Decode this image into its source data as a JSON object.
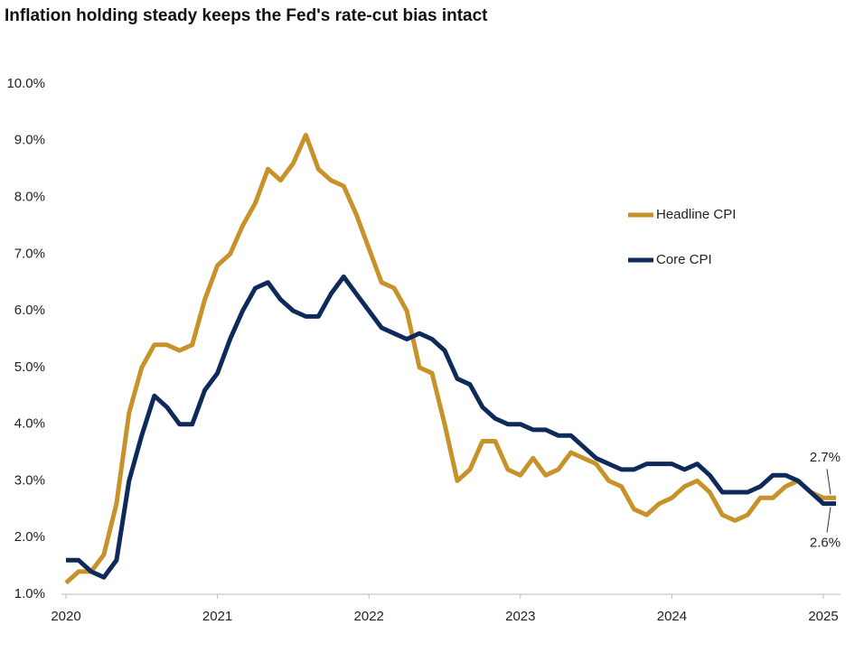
{
  "chart_data": {
    "type": "line",
    "title": "Inflation holding steady keeps the Fed's rate-cut bias intact",
    "categories": [
      "2020",
      null,
      null,
      null,
      null,
      null,
      null,
      null,
      null,
      null,
      null,
      null,
      "2021",
      null,
      null,
      null,
      null,
      null,
      null,
      null,
      null,
      null,
      null,
      null,
      "2022",
      null,
      null,
      null,
      null,
      null,
      null,
      null,
      null,
      null,
      null,
      null,
      "2023",
      null,
      null,
      null,
      null,
      null,
      null,
      null,
      null,
      null,
      null,
      null,
      "2024",
      null,
      null,
      null,
      null,
      null,
      null,
      null,
      null,
      null,
      null,
      null,
      "2025",
      null
    ],
    "series": [
      {
        "name": "Headline CPI",
        "color": "#c8922a",
        "values": [
          1.2,
          1.4,
          1.4,
          1.7,
          2.6,
          4.2,
          5.0,
          5.4,
          5.4,
          5.3,
          5.4,
          6.2,
          6.8,
          7.0,
          7.5,
          7.9,
          8.5,
          8.3,
          8.6,
          9.1,
          8.5,
          8.3,
          8.2,
          7.7,
          7.1,
          6.5,
          6.4,
          6.0,
          5.0,
          4.9,
          4.0,
          3.0,
          3.2,
          3.7,
          3.7,
          3.2,
          3.1,
          3.4,
          3.1,
          3.2,
          3.5,
          3.4,
          3.3,
          3.0,
          2.9,
          2.5,
          2.4,
          2.6,
          2.7,
          2.9,
          3.0,
          2.8,
          2.4,
          2.3,
          2.4,
          2.7,
          2.7,
          2.9,
          3.0,
          2.8,
          2.7,
          2.7
        ],
        "value_labels": [
          null,
          null,
          null,
          null,
          null,
          null,
          null,
          null,
          null,
          null,
          null,
          null,
          null,
          null,
          null,
          null,
          null,
          null,
          null,
          null,
          null,
          null,
          null,
          null,
          null,
          null,
          null,
          null,
          null,
          null,
          null,
          null,
          null,
          null,
          null,
          null,
          null,
          null,
          null,
          null,
          null,
          null,
          null,
          null,
          null,
          null,
          null,
          null,
          null,
          null,
          null,
          null,
          null,
          null,
          null,
          null,
          null,
          null,
          null,
          null,
          null,
          "2.7%"
        ]
      },
      {
        "name": "Core CPI",
        "color": "#0e2a5a",
        "values": [
          1.6,
          1.6,
          1.4,
          1.3,
          1.6,
          3.0,
          3.8,
          4.5,
          4.3,
          4.0,
          4.0,
          4.6,
          4.9,
          5.5,
          6.0,
          6.4,
          6.5,
          6.2,
          6.0,
          5.9,
          5.9,
          6.3,
          6.6,
          6.3,
          6.0,
          5.7,
          5.6,
          5.5,
          5.6,
          5.5,
          5.3,
          4.8,
          4.7,
          4.3,
          4.1,
          4.0,
          4.0,
          3.9,
          3.9,
          3.8,
          3.8,
          3.6,
          3.4,
          3.3,
          3.2,
          3.2,
          3.3,
          3.3,
          3.3,
          3.2,
          3.3,
          3.1,
          2.8,
          2.8,
          2.8,
          2.9,
          3.1,
          3.1,
          3.0,
          2.8,
          2.6,
          2.6
        ],
        "value_labels": [
          null,
          null,
          null,
          null,
          null,
          null,
          null,
          null,
          null,
          null,
          null,
          null,
          null,
          null,
          null,
          null,
          null,
          null,
          null,
          null,
          null,
          null,
          null,
          null,
          null,
          null,
          null,
          null,
          null,
          null,
          null,
          null,
          null,
          null,
          null,
          null,
          null,
          null,
          null,
          null,
          null,
          null,
          null,
          null,
          null,
          null,
          null,
          null,
          null,
          null,
          null,
          null,
          null,
          null,
          null,
          null,
          null,
          null,
          null,
          null,
          null,
          "2.6%"
        ]
      }
    ],
    "ylim": [
      1,
      10
    ],
    "yticks": [
      {
        "value": 1,
        "label": "1.0%"
      },
      {
        "value": 2,
        "label": "2.0%"
      },
      {
        "value": 3,
        "label": "3.0%"
      },
      {
        "value": 4,
        "label": "4.0%"
      },
      {
        "value": 5,
        "label": "5.0%"
      },
      {
        "value": 6,
        "label": "6.0%"
      },
      {
        "value": 7,
        "label": "7.0%"
      },
      {
        "value": 8,
        "label": "8.0%"
      },
      {
        "value": 9,
        "label": "9.0%"
      },
      {
        "value": 10,
        "label": "10.0%"
      }
    ],
    "grid": false
  }
}
